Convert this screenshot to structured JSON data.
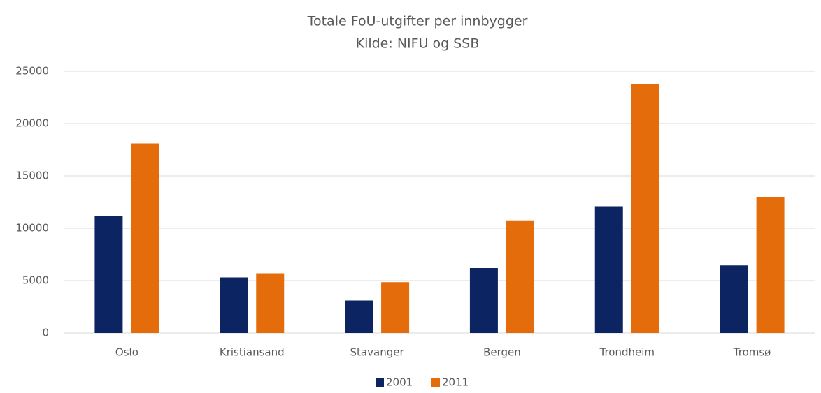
{
  "chart_data": {
    "type": "bar",
    "title": "Totale FoU-utgifter per innbygger",
    "subtitle": "Kilde: NIFU og SSB",
    "categories": [
      "Oslo",
      "Kristiansand",
      "Stavanger",
      "Bergen",
      "Trondheim",
      "Tromsø"
    ],
    "series": [
      {
        "name": "2001",
        "color": "#0c2461",
        "values": [
          11200,
          5300,
          3100,
          6200,
          12100,
          6450
        ]
      },
      {
        "name": "2011",
        "color": "#e46c0a",
        "values": [
          18100,
          5700,
          4850,
          10750,
          23750,
          13000
        ]
      }
    ],
    "ylim": [
      0,
      25000
    ],
    "yticks": [
      0,
      5000,
      10000,
      15000,
      20000,
      25000
    ],
    "grid": true,
    "legend": "bottom"
  }
}
